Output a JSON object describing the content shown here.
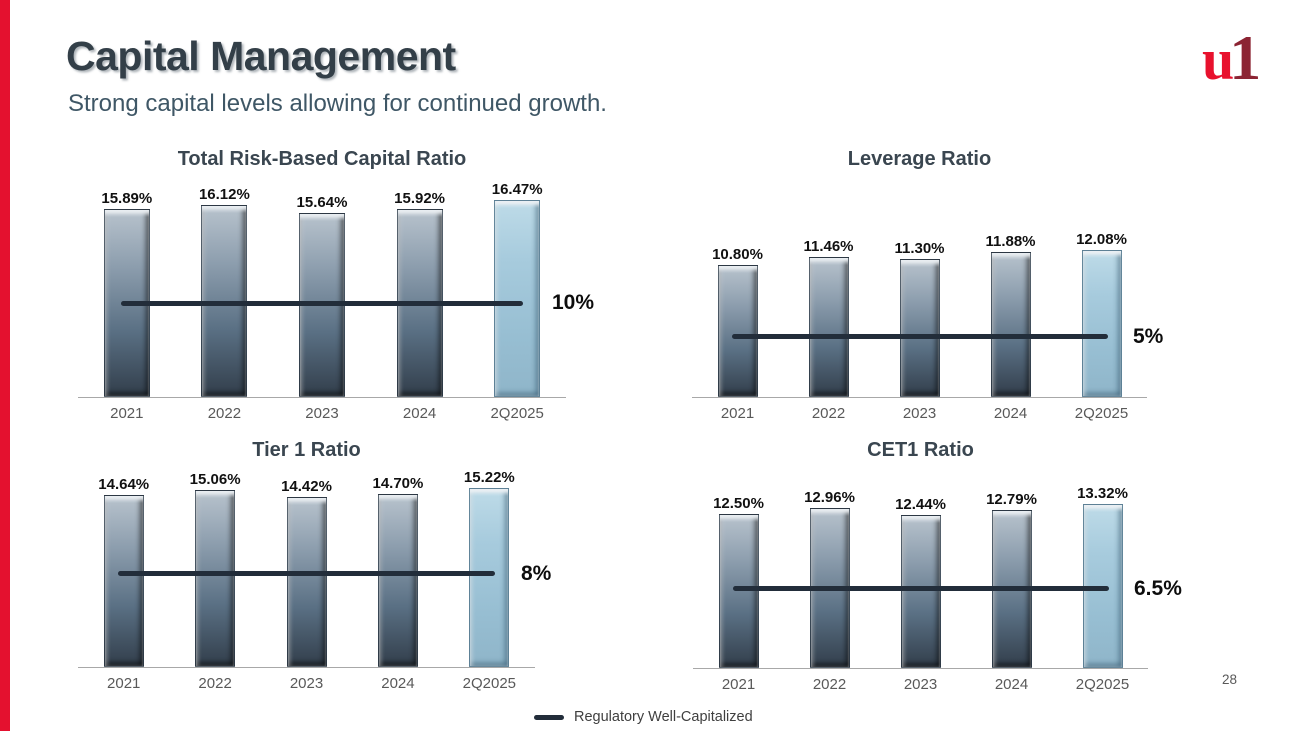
{
  "slide": {
    "title": "Capital Management",
    "subtitle": "Strong capital levels allowing for continued growth.",
    "page_number": "28",
    "logo": {
      "part_u": "u",
      "part_one": "1"
    }
  },
  "legend": {
    "label": "Regulatory Well-Capitalized"
  },
  "palette": {
    "accent_red": "#e4112f",
    "logo_u_red": "#e8112d",
    "logo_one_maroon": "#8c2433",
    "title_color": "#333f48",
    "subtitle_color": "#3f5766",
    "bar_gradient_top": "#b8c3cd",
    "bar_gradient_bottom": "#323e4b",
    "highlight_bar_blue": "#9dc3d7",
    "threshold_line_color": "#222d3a",
    "axis_color": "#a8a8a8",
    "axis_label_gray": "#595959"
  },
  "chart_data": [
    {
      "type": "bar",
      "title": "Total Risk-Based Capital Ratio",
      "categories": [
        "2021",
        "2022",
        "2023",
        "2024",
        "2Q2025"
      ],
      "values": [
        15.89,
        16.12,
        15.64,
        15.92,
        16.47
      ],
      "labels": [
        "15.89%",
        "16.12%",
        "15.64%",
        "15.92%",
        "16.47%"
      ],
      "threshold": {
        "value": 10,
        "label": "10%",
        "name": "Regulatory Well-Capitalized"
      },
      "ylim": [
        4,
        16.47
      ],
      "highlight_index": 4,
      "xlabel": "",
      "ylabel": "",
      "grid": false,
      "legend_position": "shared-bottom"
    },
    {
      "type": "bar",
      "title": "Leverage Ratio",
      "categories": [
        "2021",
        "2022",
        "2023",
        "2024",
        "2Q2025"
      ],
      "values": [
        10.8,
        11.46,
        11.3,
        11.88,
        12.08
      ],
      "labels": [
        "10.80%",
        "11.46%",
        "11.30%",
        "11.88%",
        "12.08%"
      ],
      "threshold": {
        "value": 5,
        "label": "5%",
        "name": "Regulatory Well-Capitalized"
      },
      "ylim": [
        0,
        12.08
      ],
      "highlight_index": 4,
      "xlabel": "",
      "ylabel": "",
      "grid": false,
      "legend_position": "shared-bottom"
    },
    {
      "type": "bar",
      "title": "Tier 1 Ratio",
      "categories": [
        "2021",
        "2022",
        "2023",
        "2024",
        "2Q2025"
      ],
      "values": [
        14.64,
        15.06,
        14.42,
        14.7,
        15.22
      ],
      "labels": [
        "14.64%",
        "15.06%",
        "14.42%",
        "14.70%",
        "15.22%"
      ],
      "threshold": {
        "value": 8,
        "label": "8%",
        "name": "Regulatory Well-Capitalized"
      },
      "ylim": [
        0,
        15.22
      ],
      "highlight_index": 4,
      "xlabel": "",
      "ylabel": "",
      "grid": false,
      "legend_position": "shared-bottom"
    },
    {
      "type": "bar",
      "title": "CET1 Ratio",
      "categories": [
        "2021",
        "2022",
        "2023",
        "2024",
        "2Q2025"
      ],
      "values": [
        12.5,
        12.96,
        12.44,
        12.79,
        13.32
      ],
      "labels": [
        "12.50%",
        "12.96%",
        "12.44%",
        "12.79%",
        "13.32%"
      ],
      "threshold": {
        "value": 6.5,
        "label": "6.5%",
        "name": "Regulatory Well-Capitalized"
      },
      "ylim": [
        0,
        13.32
      ],
      "highlight_index": 4,
      "xlabel": "",
      "ylabel": "",
      "grid": false,
      "legend_position": "shared-bottom"
    }
  ]
}
